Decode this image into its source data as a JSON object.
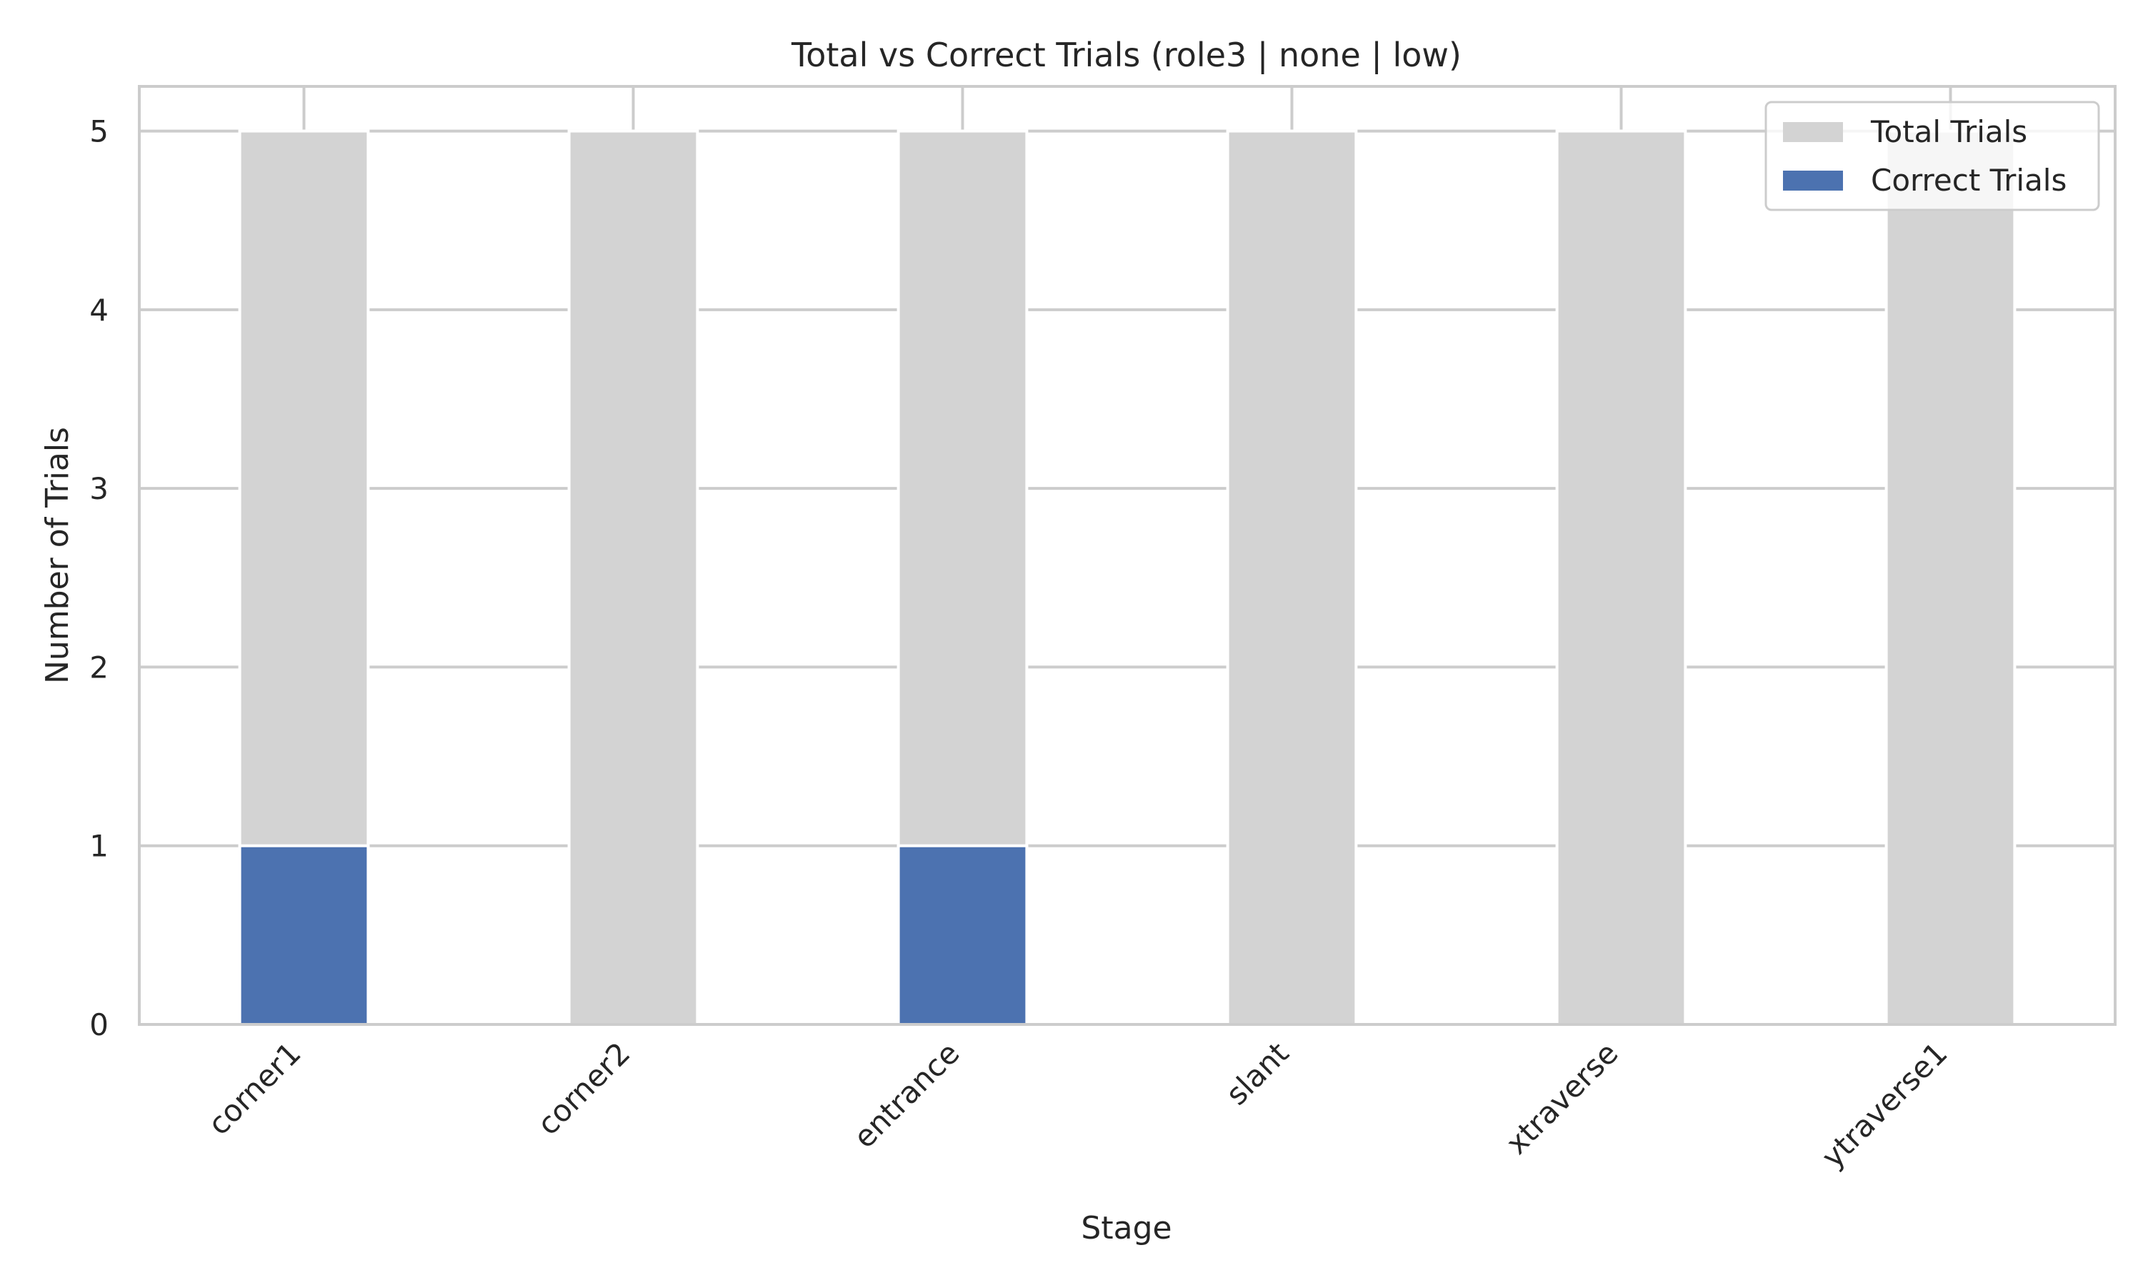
{
  "chart_data": {
    "type": "bar",
    "title": "Total vs Correct Trials (role3 | none | low)",
    "xlabel": "Stage",
    "ylabel": "Number of Trials",
    "categories": [
      "corner1",
      "corner2",
      "entrance",
      "slant",
      "xtraverse",
      "ytraverse1"
    ],
    "series": [
      {
        "name": "Total Trials",
        "values": [
          5,
          5,
          5,
          5,
          5,
          5
        ],
        "color": "#d3d3d3"
      },
      {
        "name": "Correct Trials",
        "values": [
          1,
          0,
          1,
          0,
          0,
          0
        ],
        "color": "#4c72b0"
      }
    ],
    "ylim": [
      0,
      5.25
    ],
    "yticks": [
      0,
      1,
      2,
      3,
      4,
      5
    ],
    "grid": true,
    "legend": "top-right",
    "overlay": true
  }
}
